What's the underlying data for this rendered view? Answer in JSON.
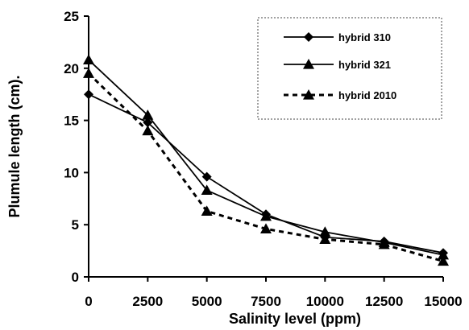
{
  "chart_data": {
    "type": "line",
    "title": "",
    "xlabel": "Salinity level (ppm)",
    "ylabel": "Plumule length (cm).",
    "x": [
      0,
      2500,
      5000,
      7500,
      10000,
      12500,
      15000
    ],
    "x_ticks": [
      "0",
      "2500",
      "5000",
      "7500",
      "10000",
      "12500",
      "15000"
    ],
    "y_ticks": [
      "0",
      "5",
      "10",
      "15",
      "20",
      "25"
    ],
    "xlim": [
      0,
      15000
    ],
    "ylim": [
      0,
      25
    ],
    "grid": false,
    "legend_position": "top-right",
    "series": [
      {
        "name": "hybrid 310",
        "values": [
          17.5,
          14.8,
          9.6,
          6.0,
          3.8,
          3.4,
          2.3
        ],
        "marker": "diamond",
        "line": "solid",
        "color": "#000000"
      },
      {
        "name": "hybrid 321",
        "values": [
          20.8,
          15.5,
          8.3,
          5.8,
          4.3,
          3.3,
          2.1
        ],
        "marker": "triangle",
        "line": "solid",
        "color": "#000000"
      },
      {
        "name": "hybrid 2010",
        "values": [
          19.5,
          14.0,
          6.3,
          4.6,
          3.6,
          3.1,
          1.5
        ],
        "marker": "triangle",
        "line": "dashed",
        "color": "#000000"
      }
    ]
  }
}
